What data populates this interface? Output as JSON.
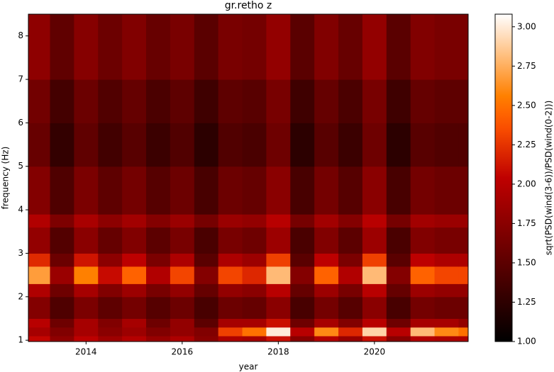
{
  "chart_data": {
    "type": "heatmap",
    "title": "gr.retho z",
    "xlabel": "year",
    "ylabel": "frequency (Hz)",
    "colorbar_label": "sqrt(PSD(wind(3-6))/PSD(wind(0-2)))",
    "colormap": "gist_heat",
    "xlim": [
      2012.8,
      2021.95
    ],
    "xticks": [
      2014,
      2016,
      2018,
      2020
    ],
    "ylim": [
      0.97,
      8.5
    ],
    "yticks": [
      1,
      2,
      3,
      4,
      5,
      6,
      7,
      8
    ],
    "clim": [
      1.0,
      3.08
    ],
    "cticks": [
      {
        "value": 1.0,
        "label": "1.00"
      },
      {
        "value": 1.25,
        "label": "1.25"
      },
      {
        "value": 1.5,
        "label": "1.50"
      },
      {
        "value": 1.75,
        "label": "1.75"
      },
      {
        "value": 2.0,
        "label": "2.00"
      },
      {
        "value": 2.25,
        "label": "2.25"
      },
      {
        "value": 2.5,
        "label": "2.50"
      },
      {
        "value": 2.75,
        "label": "2.75"
      },
      {
        "value": 3.0,
        "label": "3.00"
      }
    ],
    "x_edges": [
      2012.8,
      2013.25,
      2013.75,
      2014.25,
      2014.75,
      2015.25,
      2015.75,
      2016.25,
      2016.75,
      2017.25,
      2017.75,
      2018.25,
      2018.75,
      2019.25,
      2019.75,
      2020.25,
      2020.75,
      2021.25,
      2021.75,
      2021.95
    ],
    "y_edges": [
      0.97,
      1.1,
      1.3,
      1.5,
      2.0,
      2.3,
      2.7,
      3.0,
      3.6,
      3.9,
      5.0,
      6.0,
      7.0,
      8.5
    ],
    "z": [
      [
        2.06,
        1.78,
        2.02,
        1.86,
        1.98,
        1.82,
        1.94,
        1.74,
        1.94,
        1.9,
        2.1,
        1.74,
        1.98,
        1.82,
        2.1,
        1.74,
        1.98,
        1.94,
        1.94
      ],
      [
        1.9,
        1.7,
        1.9,
        1.75,
        1.85,
        1.7,
        1.8,
        1.7,
        2.3,
        2.5,
        3.0,
        2.0,
        2.6,
        2.2,
        2.9,
        2.0,
        2.8,
        2.6,
        2.5
      ],
      [
        2.0,
        1.6,
        1.9,
        1.7,
        1.9,
        1.6,
        1.8,
        1.5,
        1.9,
        1.9,
        2.1,
        1.6,
        1.9,
        1.7,
        2.0,
        1.6,
        1.9,
        1.9,
        1.8
      ],
      [
        1.71,
        1.43,
        1.67,
        1.51,
        1.63,
        1.47,
        1.59,
        1.39,
        1.59,
        1.55,
        1.75,
        1.39,
        1.63,
        1.47,
        1.75,
        1.39,
        1.63,
        1.59,
        1.59
      ],
      [
        1.95,
        1.6,
        1.9,
        1.7,
        1.85,
        1.65,
        1.8,
        1.55,
        1.8,
        1.75,
        2.0,
        1.55,
        1.85,
        1.65,
        2.0,
        1.55,
        1.85,
        1.8,
        1.8
      ],
      [
        2.68,
        1.84,
        2.56,
        2.08,
        2.44,
        1.96,
        2.32,
        1.72,
        2.32,
        2.2,
        2.8,
        1.72,
        2.44,
        1.96,
        2.8,
        1.72,
        2.44,
        2.32,
        2.32
      ],
      [
        2.21,
        1.58,
        2.12,
        1.76,
        2.03,
        1.67,
        1.94,
        1.49,
        1.94,
        1.85,
        2.3,
        1.49,
        2.03,
        1.67,
        2.3,
        1.49,
        2.03,
        1.94,
        1.94
      ],
      [
        1.8,
        1.45,
        1.75,
        1.55,
        1.7,
        1.5,
        1.65,
        1.4,
        1.65,
        1.6,
        1.85,
        1.4,
        1.7,
        1.5,
        1.85,
        1.4,
        1.7,
        1.65,
        1.65
      ],
      [
        1.96,
        1.68,
        1.92,
        1.76,
        1.88,
        1.72,
        1.84,
        1.64,
        1.84,
        1.8,
        2.0,
        1.64,
        1.88,
        1.72,
        2.0,
        1.64,
        1.88,
        1.84,
        1.84
      ],
      [
        1.71,
        1.43,
        1.67,
        1.51,
        1.63,
        1.47,
        1.59,
        1.39,
        1.59,
        1.55,
        1.75,
        1.39,
        1.63,
        1.47,
        1.75,
        1.39,
        1.63,
        1.59,
        1.59
      ],
      [
        1.56,
        1.28,
        1.52,
        1.36,
        1.48,
        1.32,
        1.44,
        1.24,
        1.44,
        1.4,
        1.6,
        1.24,
        1.48,
        1.32,
        1.6,
        1.24,
        1.48,
        1.44,
        1.44
      ],
      [
        1.62,
        1.37,
        1.58,
        1.44,
        1.55,
        1.41,
        1.51,
        1.34,
        1.51,
        1.48,
        1.65,
        1.34,
        1.55,
        1.41,
        1.65,
        1.34,
        1.55,
        1.51,
        1.51
      ],
      [
        1.77,
        1.52,
        1.73,
        1.59,
        1.7,
        1.56,
        1.66,
        1.49,
        1.66,
        1.63,
        1.8,
        1.49,
        1.7,
        1.56,
        1.8,
        1.49,
        1.7,
        1.66,
        1.66
      ]
    ]
  }
}
